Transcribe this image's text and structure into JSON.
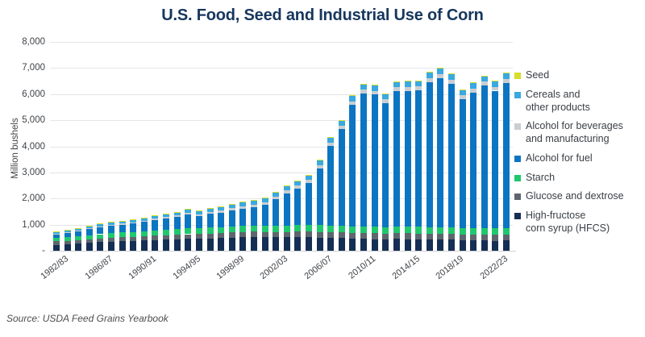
{
  "title": "U.S. Food, Seed and Industrial Use of Corn",
  "source": "Source: USDA Feed Grains Yearbook",
  "y_axis": {
    "label": "Million bushels",
    "tick_labels": [
      "8,000",
      "7,000",
      "6,000",
      "5,000",
      "4,000",
      "3,000",
      "2,000",
      "1,000",
      "-"
    ],
    "max": 8000,
    "step": 1000
  },
  "x_axis": {
    "tick_every": 4,
    "shown_labels": [
      "1982/83",
      "1986/87",
      "1990/91",
      "1994/95",
      "1998/99",
      "2002/03",
      "2006/07",
      "2010/11",
      "2014/15",
      "2018/19",
      "2022/23"
    ]
  },
  "colors": {
    "title_text": "#16365d",
    "axis_text": "#3f4348",
    "gridline": "#e3e5e7",
    "seed": "#d6de26",
    "cereals": "#39a9e0",
    "alcohol_beverages": "#c9ced3",
    "alcohol_fuel": "#0c75c2",
    "starch": "#1fc86d",
    "glucose_dextrose": "#5d666e",
    "hfcs": "#152f54"
  },
  "chart_data": {
    "type": "bar",
    "stacked": true,
    "title": "U.S. Food, Seed and Industrial Use of Corn",
    "ylabel": "Million bushels",
    "ylim": [
      0,
      8000
    ],
    "grid": true,
    "legend_position": "right",
    "categories": [
      "1982/83",
      "1983/84",
      "1984/85",
      "1985/86",
      "1986/87",
      "1987/88",
      "1988/89",
      "1989/90",
      "1990/91",
      "1991/92",
      "1992/93",
      "1993/94",
      "1994/95",
      "1995/96",
      "1996/97",
      "1997/98",
      "1998/99",
      "1999/00",
      "2000/01",
      "2001/02",
      "2002/03",
      "2003/04",
      "2004/05",
      "2005/06",
      "2006/07",
      "2007/08",
      "2008/09",
      "2009/10",
      "2010/11",
      "2011/12",
      "2012/13",
      "2013/14",
      "2014/15",
      "2015/16",
      "2016/17",
      "2017/18",
      "2018/19",
      "2019/20",
      "2020/21",
      "2021/22",
      "2022/23",
      "2023/24"
    ],
    "series_bottom_to_top": [
      {
        "name": "High-fructose corn syrup (HFCS)",
        "legend_label": "High-fructose\ncorn syrup (HFCS)",
        "color_key": "hfcs",
        "values": [
          230,
          250,
          275,
          300,
          325,
          350,
          365,
          380,
          395,
          410,
          425,
          440,
          455,
          465,
          475,
          490,
          505,
          520,
          525,
          520,
          515,
          512,
          515,
          512,
          508,
          495,
          480,
          465,
          455,
          445,
          440,
          450,
          445,
          440,
          435,
          430,
          420,
          405,
          395,
          400,
          385,
          390
        ]
      },
      {
        "name": "Glucose and dextrose",
        "legend_label": "Glucose and dextrose",
        "color_key": "glucose_dextrose",
        "values": [
          130,
          134,
          138,
          142,
          146,
          150,
          154,
          158,
          162,
          166,
          170,
          174,
          178,
          182,
          186,
          190,
          194,
          198,
          202,
          205,
          208,
          210,
          212,
          214,
          215,
          216,
          217,
          218,
          219,
          220,
          218,
          220,
          221,
          222,
          223,
          224,
          222,
          218,
          220,
          222,
          220,
          222
        ]
      },
      {
        "name": "Starch",
        "legend_label": "Starch",
        "color_key": "starch",
        "values": [
          130,
          138,
          146,
          154,
          162,
          170,
          178,
          186,
          194,
          200,
          206,
          212,
          218,
          222,
          226,
          230,
          234,
          238,
          242,
          244,
          246,
          248,
          250,
          252,
          254,
          255,
          250,
          252,
          255,
          253,
          248,
          252,
          254,
          250,
          252,
          254,
          250,
          242,
          246,
          250,
          246,
          250
        ]
      },
      {
        "name": "Alcohol for fuel",
        "legend_label": "Alcohol for fuel",
        "color_key": "alcohol_fuel",
        "values": [
          140,
          160,
          190,
          230,
          271,
          290,
          300,
          321,
          349,
          398,
          426,
          458,
          533,
          450,
          520,
          550,
          600,
          660,
          700,
          790,
          996,
          1225,
          1400,
          1603,
          2180,
          3049,
          3709,
          4650,
          5100,
          5060,
          4750,
          5200,
          5207,
          5224,
          5550,
          5700,
          5500,
          4950,
          5200,
          5450,
          5280,
          5560
        ]
      },
      {
        "name": "Alcohol for beverages and manufacturing",
        "legend_label": "Alcohol for beverages\nand manufacturing",
        "color_key": "alcohol_beverages",
        "values": [
          25,
          28,
          31,
          34,
          37,
          40,
          44,
          48,
          52,
          56,
          60,
          65,
          70,
          75,
          80,
          85,
          90,
          95,
          100,
          105,
          110,
          115,
          120,
          125,
          130,
          135,
          140,
          144,
          148,
          150,
          148,
          150,
          152,
          154,
          156,
          158,
          155,
          148,
          152,
          155,
          152,
          155
        ]
      },
      {
        "name": "Cereals and other products",
        "legend_label": "Cereals and\nother products",
        "color_key": "cereals",
        "values": [
          60,
          65,
          70,
          75,
          80,
          85,
          90,
          95,
          100,
          105,
          110,
          115,
          120,
          125,
          130,
          135,
          140,
          145,
          150,
          155,
          160,
          165,
          170,
          175,
          180,
          185,
          190,
          195,
          200,
          202,
          198,
          202,
          205,
          208,
          210,
          212,
          208,
          200,
          205,
          210,
          208,
          212
        ]
      },
      {
        "name": "Seed",
        "legend_label": "Seed",
        "color_key": "seed",
        "values": [
          15,
          16,
          17,
          17,
          18,
          18,
          19,
          19,
          20,
          20,
          20,
          21,
          21,
          21,
          22,
          22,
          22,
          23,
          23,
          23,
          24,
          24,
          24,
          25,
          25,
          25,
          26,
          26,
          26,
          27,
          27,
          27,
          28,
          28,
          28,
          29,
          29,
          29,
          30,
          30,
          30,
          30
        ]
      }
    ]
  }
}
